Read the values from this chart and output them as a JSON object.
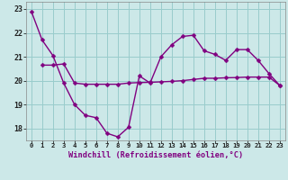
{
  "line1_x": [
    0,
    1,
    2,
    3,
    4,
    5,
    6,
    7,
    8,
    9,
    10,
    11,
    12,
    13,
    14,
    15,
    16,
    17,
    18,
    19,
    20,
    21,
    22,
    23
  ],
  "line1_y": [
    22.9,
    21.7,
    21.05,
    19.9,
    19.0,
    18.55,
    18.45,
    17.8,
    17.65,
    18.05,
    20.2,
    19.9,
    21.0,
    21.5,
    21.85,
    21.9,
    21.25,
    21.1,
    20.85,
    21.3,
    21.3,
    20.85,
    20.3,
    19.8
  ],
  "line2_x": [
    1,
    2,
    3,
    4,
    5,
    6,
    7,
    8,
    9,
    10,
    11,
    12,
    13,
    14,
    15,
    16,
    17,
    18,
    19,
    20,
    21,
    22,
    23
  ],
  "line2_y": [
    20.65,
    20.65,
    20.7,
    19.9,
    19.85,
    19.85,
    19.85,
    19.85,
    19.9,
    19.92,
    19.93,
    19.95,
    19.97,
    20.0,
    20.05,
    20.1,
    20.1,
    20.12,
    20.13,
    20.15,
    20.15,
    20.15,
    19.8
  ],
  "line_color": "#800080",
  "bg_color": "#cce8e8",
  "grid_color": "#99cccc",
  "xlabel": "Windchill (Refroidissement éolien,°C)",
  "ylim": [
    17.5,
    23.3
  ],
  "yticks": [
    18,
    19,
    20,
    21,
    22,
    23
  ],
  "xticks": [
    0,
    1,
    2,
    3,
    4,
    5,
    6,
    7,
    8,
    9,
    10,
    11,
    12,
    13,
    14,
    15,
    16,
    17,
    18,
    19,
    20,
    21,
    22,
    23
  ],
  "xlim": [
    -0.5,
    23.5
  ],
  "markersize": 2.5,
  "linewidth": 1.0
}
